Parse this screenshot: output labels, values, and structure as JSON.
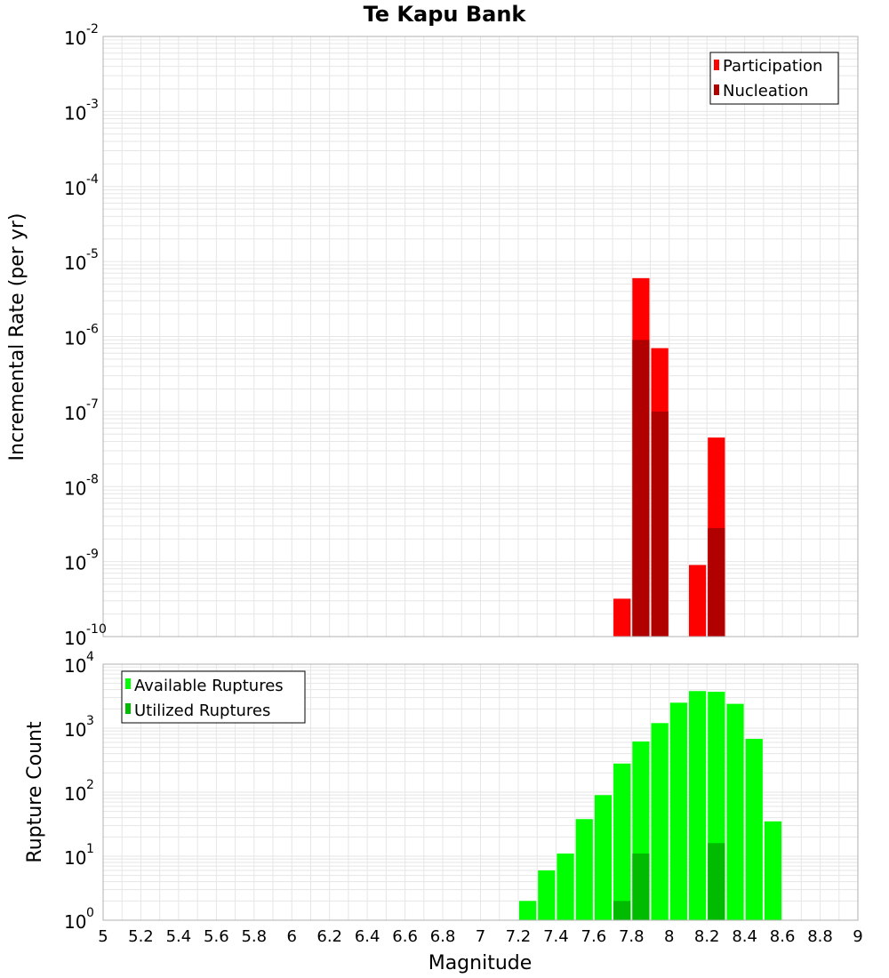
{
  "chart_data": [
    {
      "type": "bar",
      "title": "Te Kapu Bank",
      "xlabel": "",
      "ylabel": "Incremental Rate (per yr)",
      "yscale": "log",
      "ylim_exponents": [
        -10,
        -2
      ],
      "xlim": [
        5,
        9
      ],
      "bin_width": 0.1,
      "legend_position": "top-right",
      "series": [
        {
          "name": "Participation",
          "color": "#ff0000",
          "x": [
            7.75,
            7.85,
            7.95,
            8.15,
            8.25
          ],
          "values": [
            3.2e-10,
            6e-06,
            7e-07,
            9e-10,
            4.5e-08
          ]
        },
        {
          "name": "Nucleation",
          "color": "#b00000",
          "x": [
            7.85,
            7.95,
            8.25
          ],
          "values": [
            9e-07,
            1e-07,
            2.8e-09
          ]
        }
      ]
    },
    {
      "type": "bar",
      "title": "",
      "xlabel": "Magnitude",
      "ylabel": "Rupture Count",
      "yscale": "log",
      "ylim_exponents": [
        0,
        4
      ],
      "xlim": [
        5,
        9
      ],
      "bin_width": 0.1,
      "legend_position": "top-left",
      "x_ticks": [
        "5",
        "5.2",
        "5.4",
        "5.6",
        "5.8",
        "6",
        "6.2",
        "6.4",
        "6.6",
        "6.8",
        "7",
        "7.2",
        "7.4",
        "7.6",
        "7.8",
        "8",
        "8.2",
        "8.4",
        "8.6",
        "8.8",
        "9"
      ],
      "series": [
        {
          "name": "Available Ruptures",
          "color": "#00ff00",
          "x": [
            7.05,
            7.25,
            7.35,
            7.45,
            7.55,
            7.65,
            7.75,
            7.85,
            7.95,
            8.05,
            8.15,
            8.25,
            8.35,
            8.45,
            8.55
          ],
          "values": [
            1,
            2,
            6,
            11,
            38,
            90,
            280,
            620,
            1200,
            2500,
            3800,
            3700,
            2400,
            680,
            35
          ]
        },
        {
          "name": "Utilized Ruptures",
          "color": "#00bb00",
          "x": [
            7.75,
            7.85,
            7.95,
            8.15,
            8.25
          ],
          "values": [
            2,
            11,
            1,
            1,
            16
          ]
        }
      ]
    }
  ]
}
